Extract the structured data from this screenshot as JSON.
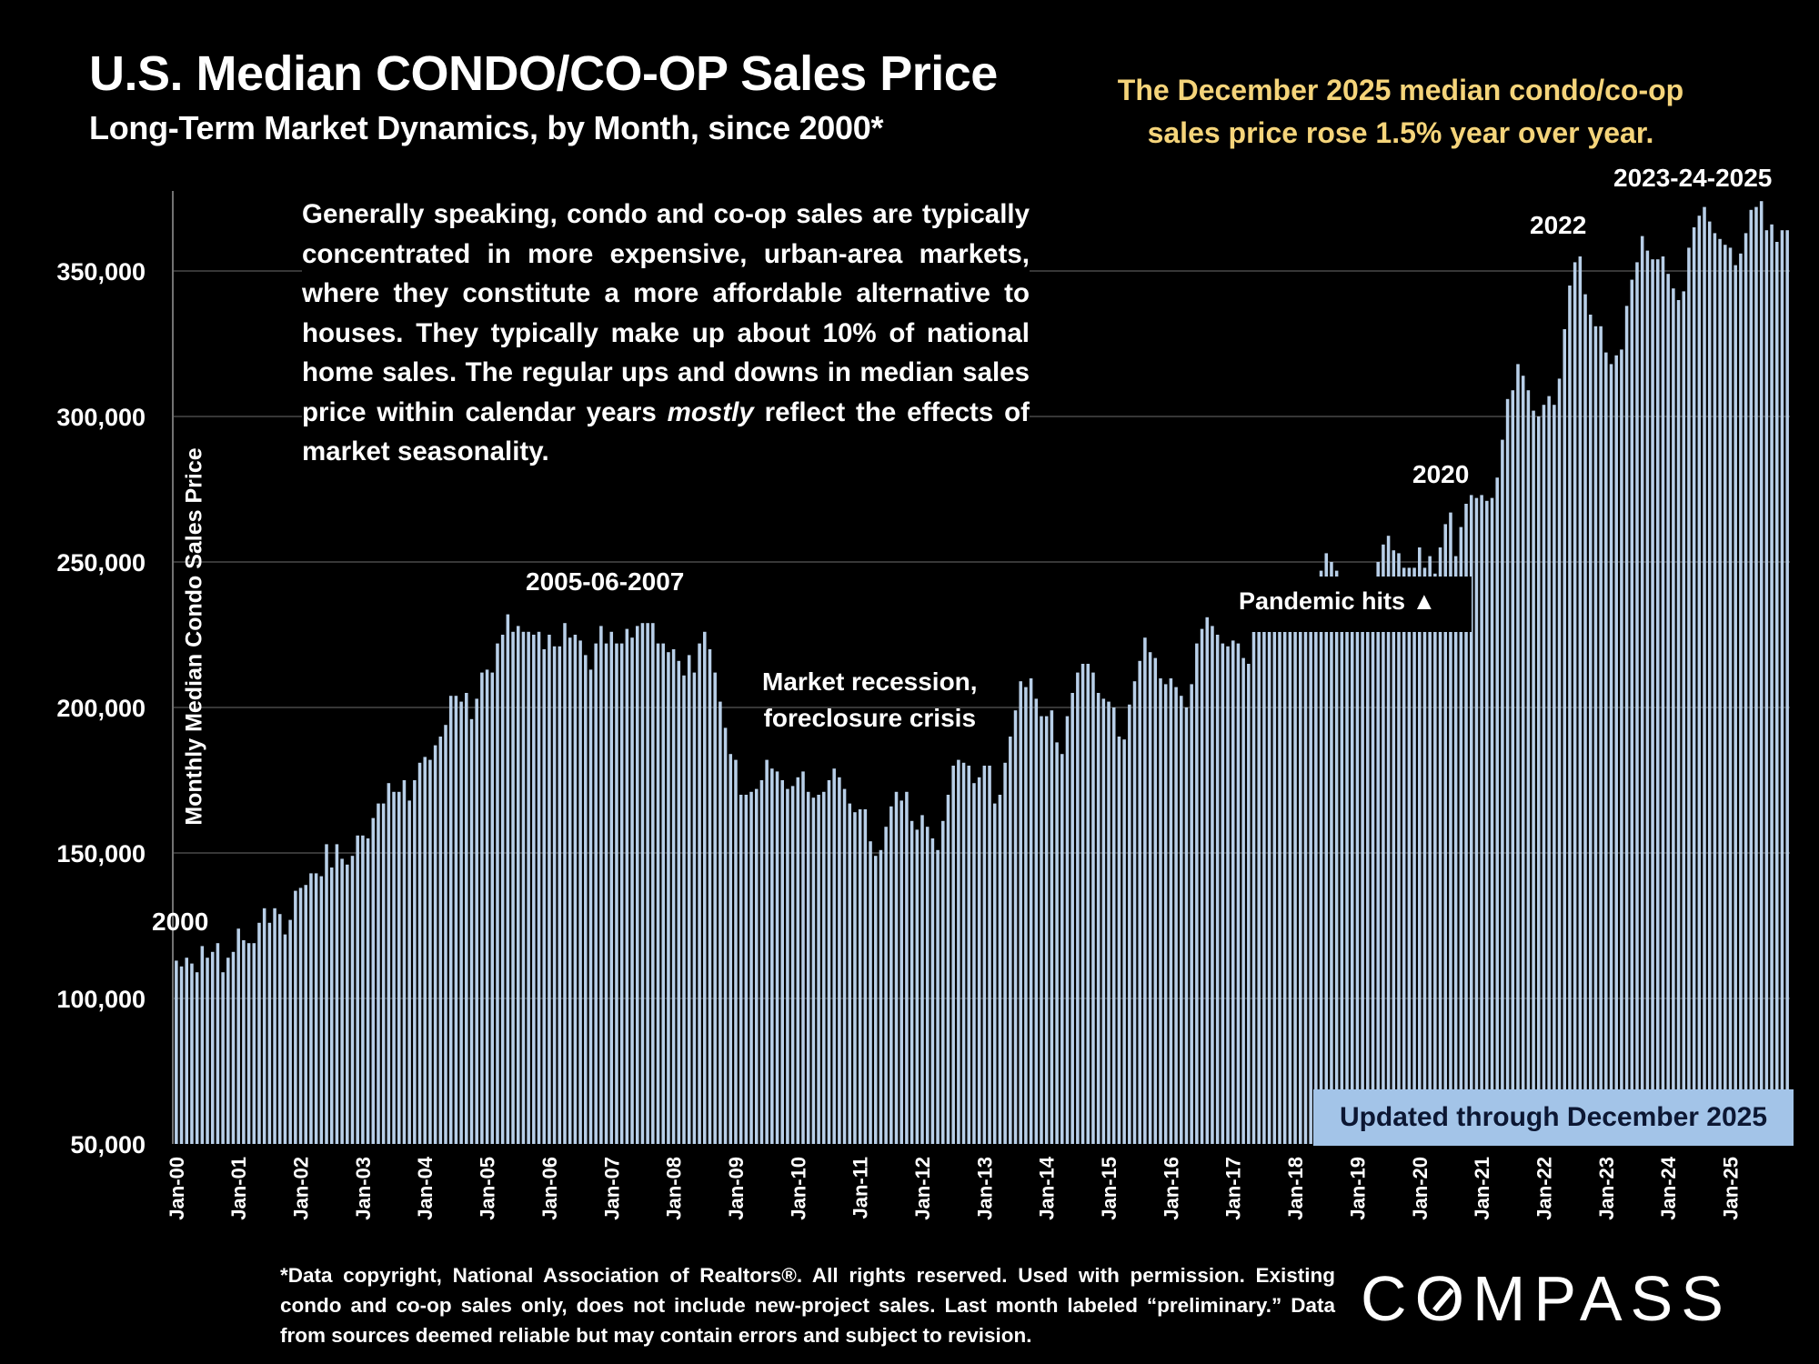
{
  "header": {
    "title": "U.S. Median CONDO/CO-OP Sales Price",
    "subtitle": "Long-Term Market Dynamics, by Month, since 2000*",
    "headline_line1": "The December 2025 median condo/co-op",
    "headline_line2": "sales price rose 1.5% year over year.",
    "headline_color": "#f5d47a"
  },
  "note": {
    "text_part1": "Generally speaking, condo and co-op sales are typically concentrated in more expensive, urban-area markets, where they constitute a more affordable alternative to houses. They typically make up about 10% of national home sales. The regular ups and downs in median sales price within calendar years",
    "emphasis": "mostly",
    "text_part2": " reflect the effects of market seasonality."
  },
  "annotations": {
    "y2000": "2000",
    "peak2005_2007": "2005-06-2007",
    "recession_line1": "Market recession,",
    "recession_line2": "foreclosure crisis",
    "pandemic": "Pandemic hits ▲",
    "y2020": "2020",
    "y2022": "2022",
    "y2023_2025": "2023-24-2025"
  },
  "badge": {
    "updated": "Updated through December 2025",
    "background": "#a3c4e8"
  },
  "footnote": "*Data copyright, National Association of Realtors®. All rights reserved. Used with permission. Existing condo and co-op sales only, does  not include new-project sales. Last month labeled “preliminary.” Data from sources deemed reliable but may contain errors and subject to revision.",
  "logo": {
    "text_c": "C",
    "text_rest": "MPASS",
    "icon": "compass-o-slash-icon"
  },
  "chart_data": {
    "type": "bar",
    "title": "U.S. Median CONDO/CO-OP Sales Price",
    "ylabel": "Monthly Median Condo Sales Price",
    "xlabel": "",
    "ylim": [
      50000,
      377500
    ],
    "yticks": [
      50000,
      100000,
      150000,
      200000,
      250000,
      300000,
      350000
    ],
    "ytick_labels": [
      "50,000",
      "100,000",
      "150,000",
      "200,000",
      "250,000",
      "300,000",
      "350,000"
    ],
    "grid": true,
    "bar_color": "#b8cfe8",
    "xtick_labels": [
      "Jan-00",
      "Jan-01",
      "Jan-02",
      "Jan-03",
      "Jan-04",
      "Jan-05",
      "Jan-06",
      "Jan-07",
      "Jan-08",
      "Jan-09",
      "Jan-10",
      "Jan-11",
      "Jan-12",
      "Jan-13",
      "Jan-14",
      "Jan-15",
      "Jan-16",
      "Jan-17",
      "Jan-18",
      "Jan-19",
      "Jan-20",
      "Jan-21",
      "Jan-22",
      "Jan-23",
      "Jan-24",
      "Jan-25"
    ],
    "start": "Jan-2000",
    "end": "Dec-2025",
    "frequency": "monthly",
    "values_by_year": {
      "2000": [
        113000,
        111000,
        114000,
        112000,
        109000,
        118000,
        114000,
        116000,
        119000,
        109000,
        114000,
        116000
      ],
      "2001": [
        124000,
        120000,
        119000,
        119000,
        126000,
        131000,
        126000,
        131000,
        129000,
        122000,
        127000,
        137000
      ],
      "2002": [
        138000,
        139000,
        143000,
        143000,
        142000,
        153000,
        145000,
        153000,
        148000,
        146000,
        149000,
        156000
      ],
      "2003": [
        156000,
        155000,
        162000,
        167000,
        167000,
        174000,
        171000,
        171000,
        175000,
        168000,
        175000,
        181000
      ],
      "2004": [
        183000,
        182000,
        187000,
        190000,
        194000,
        204000,
        204000,
        202000,
        205000,
        196000,
        203000,
        212000
      ],
      "2005": [
        213000,
        212000,
        222000,
        225000,
        232000,
        226000,
        228000,
        226000,
        226000,
        225000,
        226000,
        220000
      ],
      "2006": [
        225000,
        221000,
        221000,
        229000,
        224000,
        225000,
        223000,
        218000,
        213000,
        222000,
        228000,
        222000
      ],
      "2007": [
        226000,
        222000,
        222000,
        227000,
        224000,
        228000,
        229000,
        229000,
        229000,
        222000,
        222000,
        219000
      ],
      "2008": [
        220000,
        216000,
        211000,
        218000,
        212000,
        222000,
        226000,
        220000,
        212000,
        202000,
        193000,
        184000
      ],
      "2009": [
        182000,
        170000,
        170000,
        171000,
        172000,
        175000,
        182000,
        179000,
        178000,
        175000,
        172000,
        173000
      ],
      "2010": [
        176000,
        178000,
        171000,
        169000,
        170000,
        171000,
        175000,
        179000,
        176000,
        172000,
        167000,
        164000
      ],
      "2011": [
        165000,
        165000,
        154000,
        149000,
        151000,
        159000,
        166000,
        171000,
        168000,
        171000,
        161000,
        158000
      ],
      "2012": [
        163000,
        159000,
        155000,
        151000,
        161000,
        170000,
        180000,
        182000,
        181000,
        180000,
        174000,
        176000
      ],
      "2013": [
        180000,
        180000,
        167000,
        170000,
        181000,
        190000,
        199000,
        209000,
        207000,
        210000,
        203000,
        197000
      ],
      "2014": [
        197000,
        199000,
        188000,
        184000,
        197000,
        205000,
        212000,
        215000,
        215000,
        212000,
        205000,
        203000
      ],
      "2015": [
        202000,
        200000,
        190000,
        189000,
        201000,
        209000,
        216000,
        224000,
        219000,
        217000,
        210000,
        208000
      ],
      "2016": [
        210000,
        207000,
        204000,
        200000,
        208000,
        222000,
        227000,
        231000,
        228000,
        225000,
        222000,
        221000
      ],
      "2017": [
        223000,
        222000,
        217000,
        215000,
        226000,
        234000,
        240000,
        244000,
        241000,
        238000,
        236000,
        236000
      ],
      "2018": [
        238000,
        236000,
        234000,
        230000,
        238000,
        247000,
        253000,
        250000,
        247000,
        244000,
        241000,
        240000
      ],
      "2019": [
        240000,
        237000,
        235000,
        236000,
        250000,
        256000,
        259000,
        254000,
        253000,
        248000,
        248000,
        248000
      ],
      "2020": [
        255000,
        248000,
        252000,
        246000,
        255000,
        263000,
        267000,
        252000,
        262000,
        270000,
        273000,
        272000
      ],
      "2021": [
        273000,
        271000,
        272000,
        279000,
        292000,
        306000,
        309000,
        318000,
        314000,
        309000,
        302000,
        300000
      ],
      "2022": [
        304000,
        307000,
        304000,
        313000,
        330000,
        345000,
        353000,
        355000,
        342000,
        335000,
        331000,
        331000
      ],
      "2023": [
        322000,
        318000,
        321000,
        323000,
        338000,
        347000,
        353000,
        362000,
        357000,
        354000,
        354000,
        355000
      ],
      "2024": [
        349000,
        344000,
        340000,
        343000,
        358000,
        365000,
        369000,
        372000,
        367000,
        363000,
        361000,
        359000
      ],
      "2025": [
        358000,
        352000,
        356000,
        363000,
        371000,
        372000,
        374000,
        364000,
        366000,
        360000,
        364000,
        364000
      ]
    },
    "annotations": [
      "2000",
      "2005-06-2007",
      "Market recession, foreclosure crisis",
      "Pandemic hits",
      "2020",
      "2022",
      "2023-24-2025"
    ],
    "legend": "none"
  }
}
